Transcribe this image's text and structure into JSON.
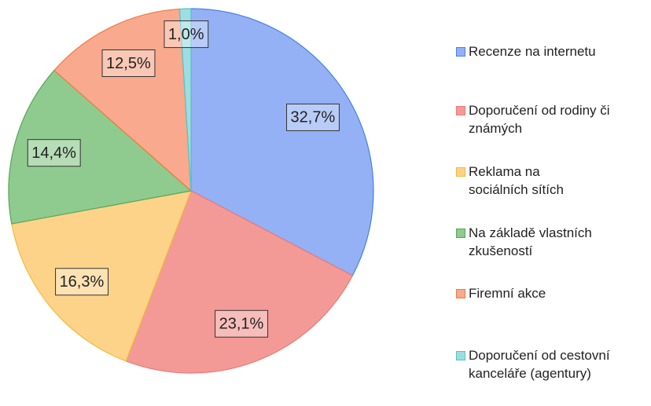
{
  "chart_data": {
    "type": "pie",
    "categories": [
      "Recenze na internetu",
      "Doporučení od rodiny či známých",
      "Reklama na sociálních sítích",
      "Na základě vlastních zkušeností",
      "Firemní akce",
      "Doporučení od cestovní kanceláře (agentury)"
    ],
    "values": [
      32.7,
      23.1,
      16.3,
      14.4,
      12.5,
      1.0
    ],
    "value_labels": [
      "32,7%",
      "23,1%",
      "16,3%",
      "14,4%",
      "12,5%",
      "1,0%"
    ],
    "colors": [
      "#94b1f5",
      "#f39a97",
      "#fdd38a",
      "#8fcb8f",
      "#f9a98e",
      "#9edde0"
    ],
    "edge_colors": [
      "#4a80e8",
      "#ec7a76",
      "#f3bb3a",
      "#58a558",
      "#ef7b40",
      "#55c3c8"
    ],
    "legend": "right"
  }
}
